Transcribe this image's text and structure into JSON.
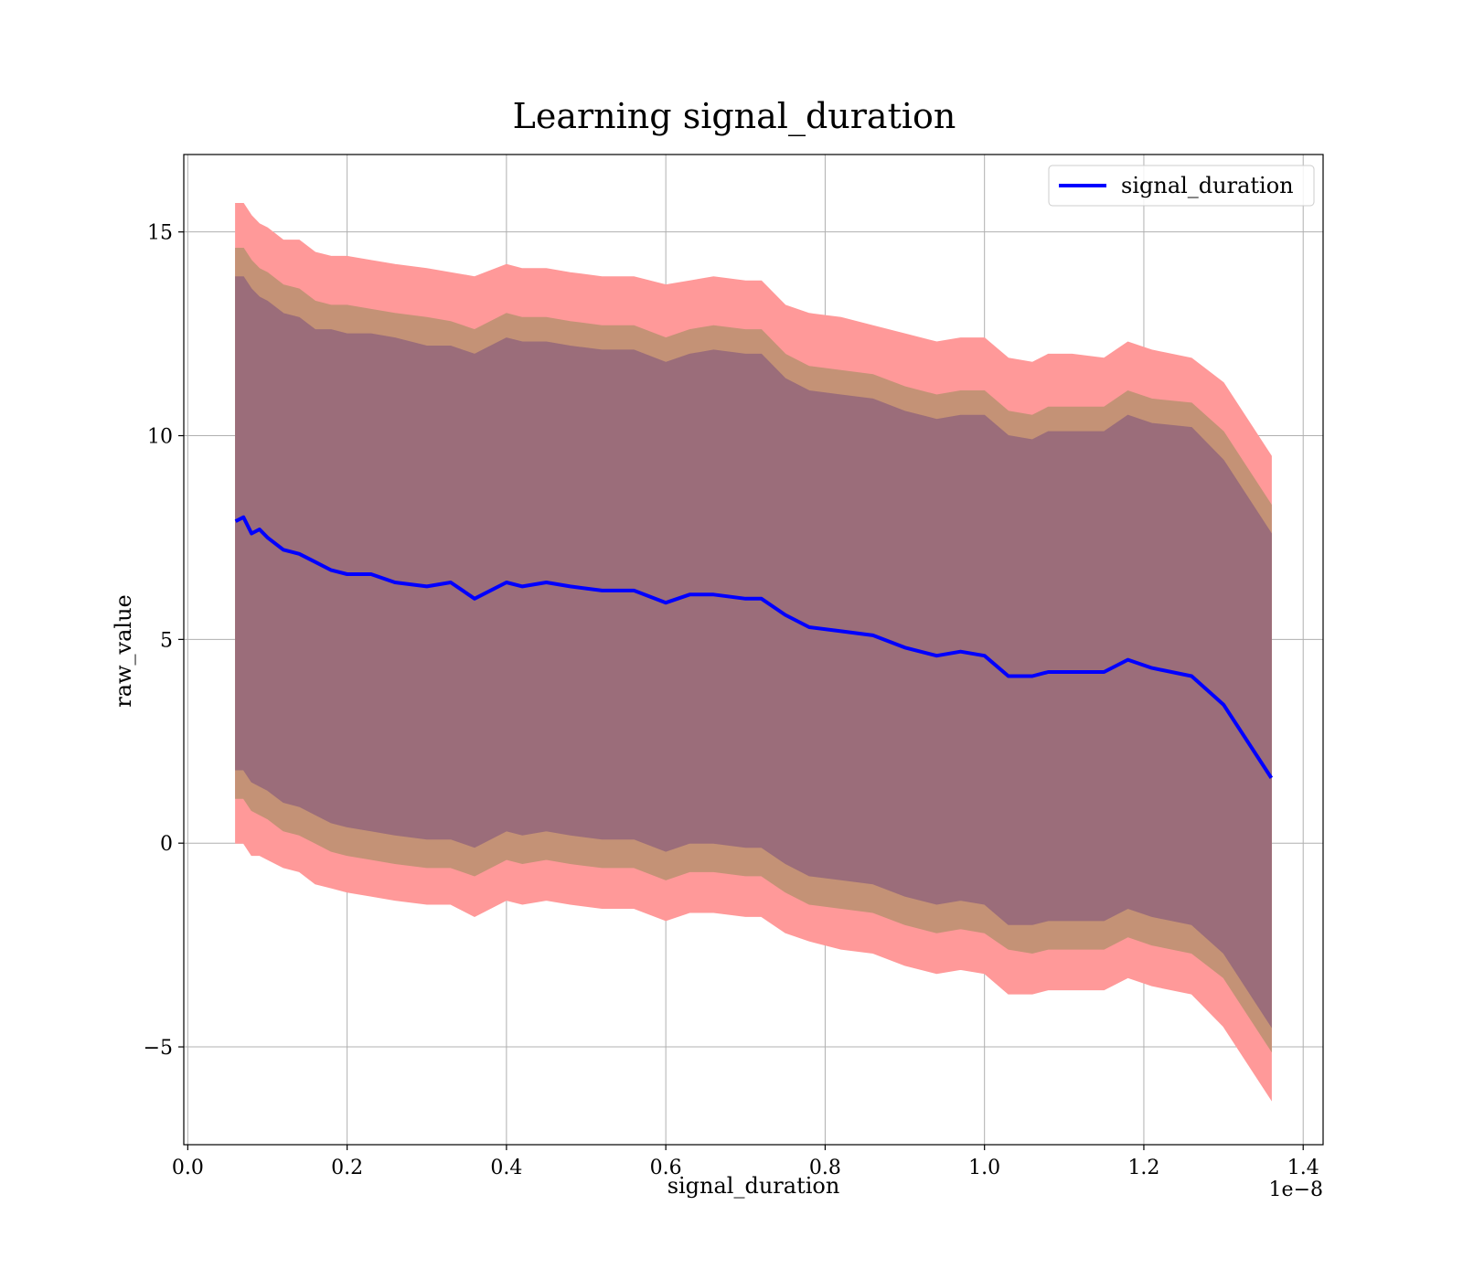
{
  "chart_data": {
    "type": "line",
    "title": "Learning signal_duration",
    "xlabel": "signal_duration",
    "ylabel": "raw_value",
    "x_offset_text": "1e−8",
    "xlim": [
      -0.005,
      1.425
    ],
    "ylim": [
      -7.4,
      16.9
    ],
    "x_ticks": [
      0.0,
      0.2,
      0.4,
      0.6,
      0.8,
      1.0,
      1.2,
      1.4
    ],
    "x_tick_labels": [
      "0.0",
      "0.2",
      "0.4",
      "0.6",
      "0.8",
      "1.0",
      "1.2",
      "1.4"
    ],
    "y_ticks": [
      -5,
      0,
      5,
      10,
      15
    ],
    "y_tick_labels": [
      "−5",
      "0",
      "5",
      "10",
      "15"
    ],
    "grid": true,
    "legend_position": "top-right",
    "series": [
      {
        "name": "signal_duration",
        "color": "#0000ff",
        "x": [
          0.06,
          0.07,
          0.08,
          0.09,
          0.1,
          0.12,
          0.14,
          0.16,
          0.18,
          0.2,
          0.23,
          0.26,
          0.3,
          0.33,
          0.36,
          0.4,
          0.42,
          0.45,
          0.48,
          0.52,
          0.56,
          0.6,
          0.63,
          0.66,
          0.7,
          0.72,
          0.75,
          0.78,
          0.82,
          0.86,
          0.9,
          0.94,
          0.97,
          1.0,
          1.03,
          1.06,
          1.08,
          1.11,
          1.15,
          1.18,
          1.21,
          1.26,
          1.3,
          1.36
        ],
        "y": [
          7.9,
          8.0,
          7.6,
          7.7,
          7.5,
          7.2,
          7.1,
          6.9,
          6.7,
          6.6,
          6.6,
          6.4,
          6.3,
          6.4,
          6.0,
          6.4,
          6.3,
          6.4,
          6.3,
          6.2,
          6.2,
          5.9,
          6.1,
          6.1,
          6.0,
          6.0,
          5.6,
          5.3,
          5.2,
          5.1,
          4.8,
          4.6,
          4.7,
          4.6,
          4.1,
          4.1,
          4.2,
          4.2,
          4.2,
          4.5,
          4.3,
          4.1,
          3.4,
          1.6
        ]
      }
    ],
    "bands": [
      {
        "level": "outer",
        "fill": "#ff9999",
        "upper": [
          15.7,
          15.7,
          15.4,
          15.2,
          15.1,
          14.8,
          14.8,
          14.5,
          14.4,
          14.4,
          14.3,
          14.2,
          14.1,
          14.0,
          13.9,
          14.2,
          14.1,
          14.1,
          14.0,
          13.9,
          13.9,
          13.7,
          13.8,
          13.9,
          13.8,
          13.8,
          13.2,
          13.0,
          12.9,
          12.7,
          12.5,
          12.3,
          12.4,
          12.4,
          11.9,
          11.8,
          12.0,
          12.0,
          11.9,
          12.3,
          12.1,
          11.9,
          11.3,
          9.5
        ],
        "lower": [
          0.0,
          0.0,
          -0.3,
          -0.3,
          -0.4,
          -0.6,
          -0.7,
          -1.0,
          -1.1,
          -1.2,
          -1.3,
          -1.4,
          -1.5,
          -1.5,
          -1.8,
          -1.4,
          -1.5,
          -1.4,
          -1.5,
          -1.6,
          -1.6,
          -1.9,
          -1.7,
          -1.7,
          -1.8,
          -1.8,
          -2.2,
          -2.4,
          -2.6,
          -2.7,
          -3.0,
          -3.2,
          -3.1,
          -3.2,
          -3.7,
          -3.7,
          -3.6,
          -3.6,
          -3.6,
          -3.3,
          -3.5,
          -3.7,
          -4.5,
          -6.3
        ]
      },
      {
        "level": "middle",
        "fill": "#c49276",
        "upper": [
          14.6,
          14.6,
          14.3,
          14.1,
          14.0,
          13.7,
          13.6,
          13.3,
          13.2,
          13.2,
          13.1,
          13.0,
          12.9,
          12.8,
          12.6,
          13.0,
          12.9,
          12.9,
          12.8,
          12.7,
          12.7,
          12.4,
          12.6,
          12.7,
          12.6,
          12.6,
          12.0,
          11.7,
          11.6,
          11.5,
          11.2,
          11.0,
          11.1,
          11.1,
          10.6,
          10.5,
          10.7,
          10.7,
          10.7,
          11.1,
          10.9,
          10.8,
          10.1,
          8.3
        ],
        "lower": [
          1.1,
          1.1,
          0.8,
          0.7,
          0.6,
          0.3,
          0.2,
          0.0,
          -0.2,
          -0.3,
          -0.4,
          -0.5,
          -0.6,
          -0.6,
          -0.8,
          -0.4,
          -0.5,
          -0.4,
          -0.5,
          -0.6,
          -0.6,
          -0.9,
          -0.7,
          -0.7,
          -0.8,
          -0.8,
          -1.2,
          -1.5,
          -1.6,
          -1.7,
          -2.0,
          -2.2,
          -2.1,
          -2.2,
          -2.6,
          -2.7,
          -2.6,
          -2.6,
          -2.6,
          -2.3,
          -2.5,
          -2.7,
          -3.3,
          -5.1
        ]
      },
      {
        "level": "inner",
        "fill": "#9b6d7a",
        "upper": [
          13.9,
          13.9,
          13.6,
          13.4,
          13.3,
          13.0,
          12.9,
          12.6,
          12.6,
          12.5,
          12.5,
          12.4,
          12.2,
          12.2,
          12.0,
          12.4,
          12.3,
          12.3,
          12.2,
          12.1,
          12.1,
          11.8,
          12.0,
          12.1,
          12.0,
          12.0,
          11.4,
          11.1,
          11.0,
          10.9,
          10.6,
          10.4,
          10.5,
          10.5,
          10.0,
          9.9,
          10.1,
          10.1,
          10.1,
          10.5,
          10.3,
          10.2,
          9.4,
          7.6
        ],
        "lower": [
          1.8,
          1.8,
          1.5,
          1.4,
          1.3,
          1.0,
          0.9,
          0.7,
          0.5,
          0.4,
          0.3,
          0.2,
          0.1,
          0.1,
          -0.1,
          0.3,
          0.2,
          0.3,
          0.2,
          0.1,
          0.1,
          -0.2,
          0.0,
          0.0,
          -0.1,
          -0.1,
          -0.5,
          -0.8,
          -0.9,
          -1.0,
          -1.3,
          -1.5,
          -1.4,
          -1.5,
          -2.0,
          -2.0,
          -1.9,
          -1.9,
          -1.9,
          -1.6,
          -1.8,
          -2.0,
          -2.7,
          -4.5
        ]
      }
    ]
  }
}
